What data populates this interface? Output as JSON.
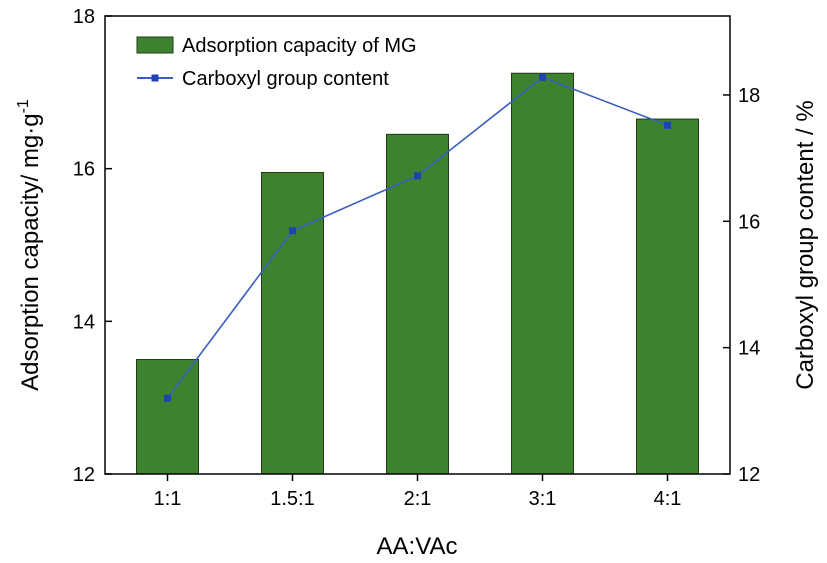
{
  "chart_data": {
    "type": "bar",
    "categories": [
      "1:1",
      "1.5:1",
      "2:1",
      "3:1",
      "4:1"
    ],
    "series": [
      {
        "name": "Adsorption capacity of MG",
        "type": "bar",
        "axis": "left",
        "values": [
          13.5,
          15.95,
          16.45,
          17.25,
          16.65
        ]
      },
      {
        "name": "Carboxyl group content",
        "type": "line",
        "axis": "right",
        "values": [
          13.2,
          15.85,
          16.72,
          18.28,
          17.52
        ]
      }
    ],
    "xlabel": "AA:VAc",
    "ylabel": "Adsorption capacity/ mg·g",
    "ylabel_sup": "-1",
    "y2label": "Carboxyl group content / %",
    "ylim": [
      12,
      18
    ],
    "y2lim": [
      12,
      19.25
    ],
    "yticks": [
      "12",
      "14",
      "16",
      "18"
    ],
    "y2ticks": [
      "12",
      "14",
      "16",
      "18"
    ],
    "legend_position": "top-left",
    "grid": false,
    "colors": {
      "bar_fill": "#3e8230",
      "bar_stroke": "#1f3d18",
      "line": "#3a5ec0",
      "marker": "#1f43b5"
    }
  }
}
